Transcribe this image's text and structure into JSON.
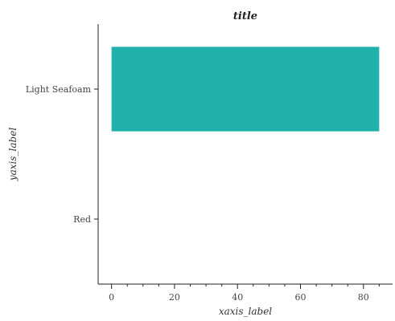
{
  "chart_data": {
    "type": "bar",
    "orientation": "horizontal",
    "title": "title",
    "xlabel": "xaxis_label",
    "ylabel": "yaxis_label",
    "categories": [
      "Red",
      "Light Seafoam"
    ],
    "values": [
      0,
      85
    ],
    "colors": [
      "#ff0000",
      "#20b2aa"
    ],
    "xlim": [
      -4.25,
      89.25
    ],
    "xticks": [
      0,
      20,
      40,
      60,
      80
    ],
    "xticks_minor_step": 5,
    "grid": false,
    "legend": "none"
  }
}
